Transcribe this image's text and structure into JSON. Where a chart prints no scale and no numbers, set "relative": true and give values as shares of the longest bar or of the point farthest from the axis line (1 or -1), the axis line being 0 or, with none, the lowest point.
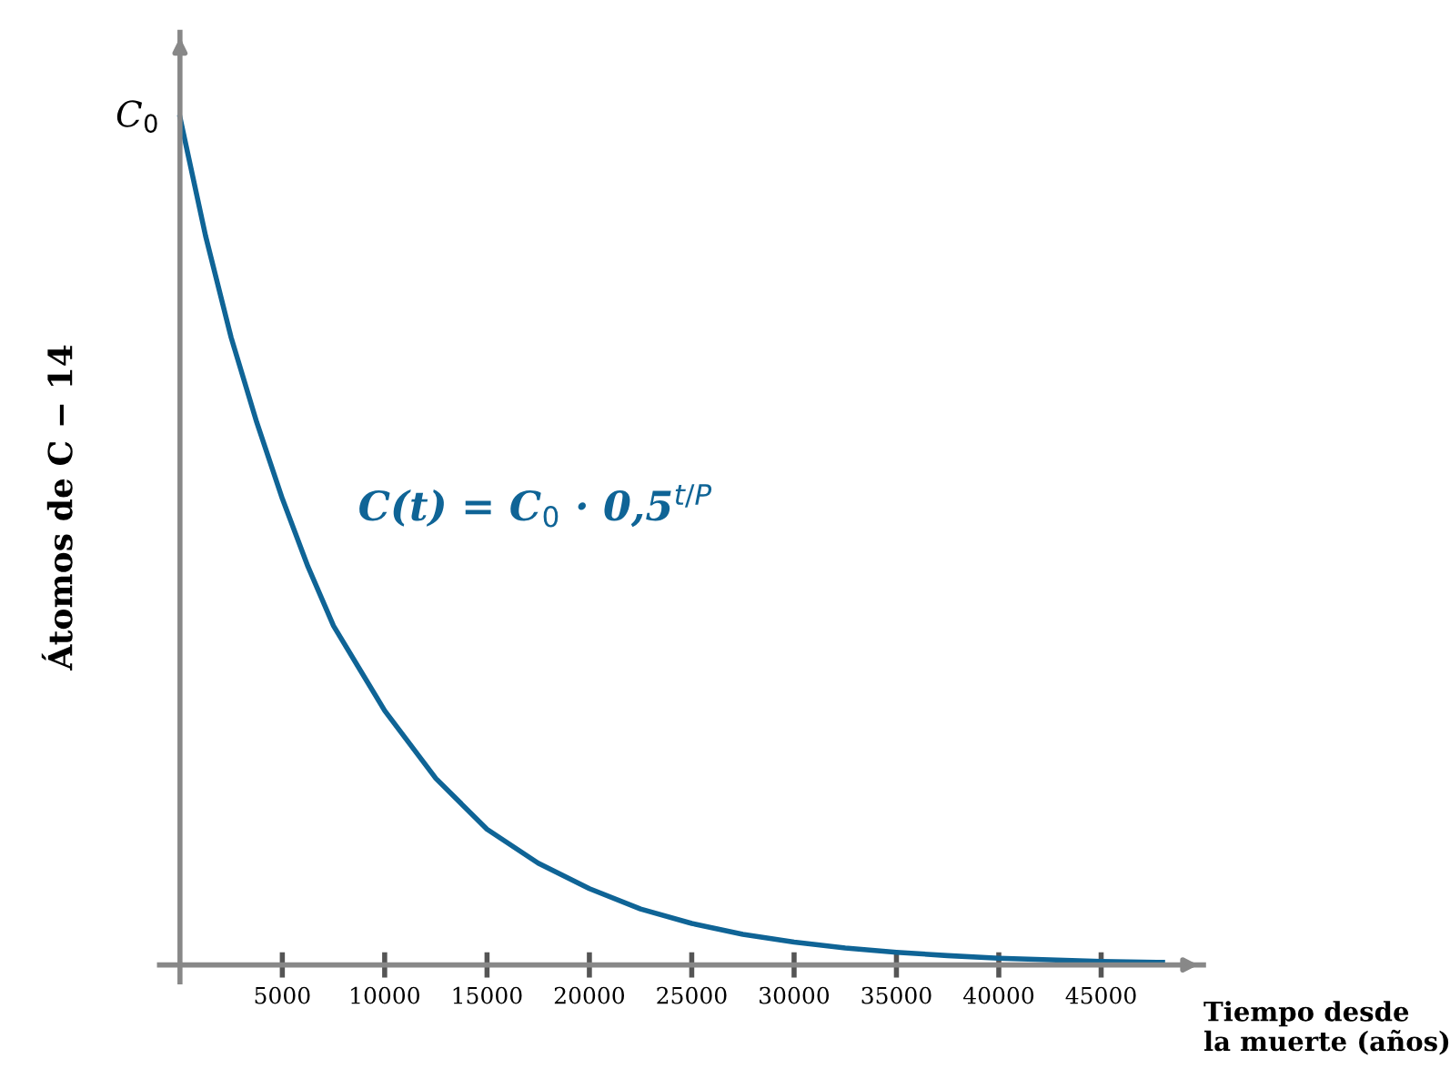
{
  "chart_data": {
    "type": "line",
    "relative": true,
    "xlabel": "Tiempo desde\nla muerte (años)",
    "ylabel": "Átomos de C − 14",
    "x": [
      0,
      1250,
      2500,
      3750,
      5000,
      6250,
      7500,
      8750,
      10000,
      12500,
      15000,
      17500,
      20000,
      22500,
      25000,
      27500,
      30000,
      32500,
      35000,
      37500,
      40000,
      42500,
      45000,
      48000
    ],
    "series": [
      {
        "color": "#0f6496",
        "values": [
          1,
          0.86,
          0.74,
          0.64,
          0.55,
          0.47,
          0.4,
          0.35,
          0.3,
          0.22,
          0.16,
          0.12,
          0.09,
          0.066,
          0.049,
          0.036,
          0.027,
          0.02,
          0.015,
          0.011,
          0.008,
          0.006,
          0.004,
          0.003
        ]
      }
    ],
    "xlim": [
      -1000,
      50000
    ],
    "xticks": [
      5000,
      10000,
      15000,
      20000,
      25000,
      30000,
      35000,
      40000,
      45000
    ],
    "annotations": [
      {
        "text": "C$_{0}$",
        "x": 0,
        "y": 1
      },
      "C(t) = C$_{0}$ · 0,5$^{t/P}$"
    ],
    "grid": false,
    "legend": false,
    "marker": "none",
    "line_style": "solid"
  }
}
